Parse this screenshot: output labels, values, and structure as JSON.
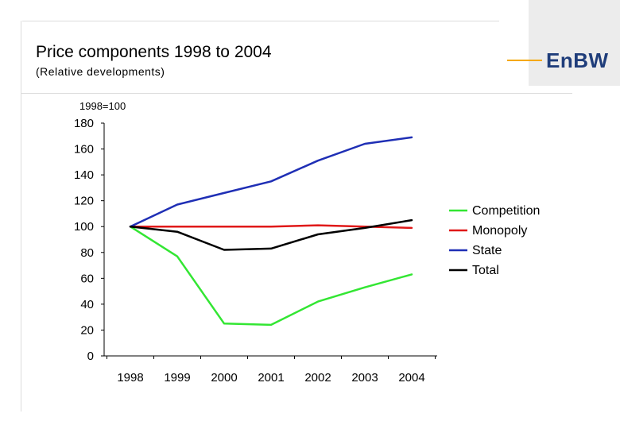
{
  "header": {
    "title": "Price components 1998 to 2004",
    "subtitle": "(Relative developments)"
  },
  "logo": {
    "text": "EnBW",
    "accent_color": "#f5a800",
    "text_color": "#1f3d7a"
  },
  "chart_data": {
    "type": "line",
    "title": "",
    "ylabel": "1998=100",
    "xlabel": "",
    "x": [
      "1998",
      "1999",
      "2000",
      "2001",
      "2002",
      "2003",
      "2004"
    ],
    "ylim": [
      0,
      180
    ],
    "yticks": [
      0,
      20,
      40,
      60,
      80,
      100,
      120,
      140,
      160,
      180
    ],
    "grid": false,
    "legend_position": "right",
    "series": [
      {
        "name": "Competition",
        "color": "#33e633",
        "values": [
          100,
          77,
          25,
          24,
          42,
          53,
          63
        ]
      },
      {
        "name": "Monopoly",
        "color": "#e01919",
        "values": [
          100,
          100,
          100,
          100,
          101,
          100,
          99
        ]
      },
      {
        "name": "State",
        "color": "#1f2fb5",
        "values": [
          100,
          117,
          126,
          135,
          151,
          164,
          169
        ]
      },
      {
        "name": "Total",
        "color": "#000000",
        "values": [
          100,
          96,
          82,
          83,
          94,
          99,
          105
        ]
      }
    ]
  }
}
